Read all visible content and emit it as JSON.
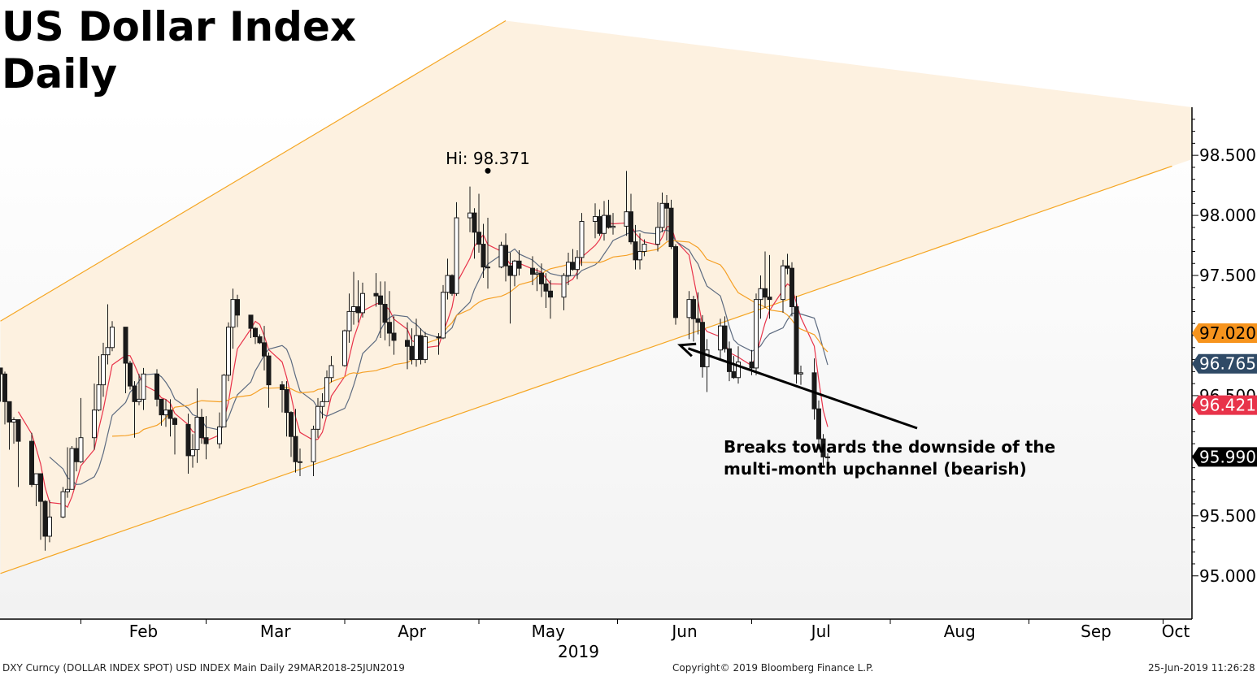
{
  "header": {
    "title_line1": "US Dollar Index",
    "title_line2": "Daily"
  },
  "footer": {
    "left": "DXY Curncy (DOLLAR INDEX SPOT) USD INDEX Main  Daily 29MAR2018-25JUN2019",
    "center": "Copyright© 2019 Bloomberg Finance L.P.",
    "right": "25-Jun-2019 11:26:28"
  },
  "colors": {
    "candle": "#1a1a1a",
    "ma_short": "#e8334a",
    "ma_mid": "#5d6b80",
    "ma_long": "#f5a026",
    "channel_fill": "#fdf1e0",
    "channel_line": "#f5a623",
    "tag_orange": "#f7941d",
    "tag_blue": "#2f4a66",
    "tag_red": "#e8334a",
    "tag_black": "#000000"
  },
  "chart_data": {
    "type": "candlestick",
    "x_labels": [
      "Feb",
      "Mar",
      "Apr",
      "May",
      "Jun",
      "Jul",
      "Aug",
      "Sep",
      "Oct"
    ],
    "x_year_label": "2019",
    "y_ticks": [
      "98.500",
      "98.000",
      "97.500",
      "96.500",
      "95.500",
      "95.000"
    ],
    "ylim": [
      94.64,
      98.9
    ],
    "grid": false,
    "channel": {
      "upper_start": 97.12,
      "upper_end": 99.62,
      "lower_start": 95.02,
      "lower_end": 98.41,
      "start": "2019-01-14",
      "end_upper": "2019-05-07",
      "end_lower": "2019-10-03"
    },
    "annotations": [
      {
        "text": "Hi: 98.371",
        "value": 98.371,
        "date": "2019-05-03"
      },
      {
        "text_line1": "Breaks towards the downside of the",
        "text_line2": "multi-month upchannel (bearish)",
        "arrow_to_date": "2019-06-15",
        "arrow_to_value": 96.92
      }
    ],
    "price_tags": [
      {
        "label": "97.020",
        "value": 97.02,
        "color": "#f7941d",
        "text_color": "#000000"
      },
      {
        "label": "96.765",
        "value": 96.765,
        "color": "#2f4a66",
        "text_color": "#ffffff"
      },
      {
        "label": "96.421",
        "value": 96.421,
        "color": "#e8334a",
        "text_color": "#ffffff"
      },
      {
        "label": "95.990",
        "value": 95.99,
        "color": "#000000",
        "text_color": "#ffffff"
      }
    ],
    "series": [
      {
        "name": "Close",
        "values": [
          96.68,
          96.45,
          96.28,
          96.3,
          96.12,
          95.76,
          95.85,
          95.62,
          95.33,
          95.49,
          95.7,
          95.72,
          96.06,
          95.95,
          96.15,
          96.38,
          96.59,
          96.84,
          96.9,
          97.07,
          96.77,
          96.58,
          96.45,
          96.47,
          96.68,
          96.47,
          96.34,
          96.38,
          96.31,
          96.26,
          96.0,
          96.05,
          96.32,
          96.15,
          96.1,
          96.24,
          96.67,
          97.07,
          97.3,
          97.17,
          97.06,
          96.99,
          96.94,
          96.83,
          96.59,
          96.55,
          96.36,
          96.16,
          95.95,
          95.95,
          96.22,
          96.41,
          96.45,
          96.65,
          96.75,
          97.04,
          97.2,
          97.24,
          97.19,
          97.35,
          97.33,
          97.26,
          97.11,
          97.02,
          96.96,
          96.91,
          96.8,
          97.0,
          96.8,
          96.99,
          96.98,
          97.36,
          97.5,
          97.35,
          97.98,
          98.02,
          97.86,
          97.76,
          97.57,
          97.57,
          97.75,
          97.58,
          97.5,
          97.62,
          97.56,
          97.51,
          97.52,
          97.43,
          97.37,
          97.32,
          97.5,
          97.61,
          97.55,
          97.65,
          97.95,
          97.99,
          97.85,
          98.0,
          97.9,
          97.91,
          98.03,
          97.78,
          97.63,
          97.7,
          97.76,
          97.9,
          98.1,
          98.06,
          97.74,
          97.15,
          97.3,
          97.14,
          97.11,
          96.74,
          96.88,
          97.08,
          96.89,
          96.7,
          96.65,
          96.78,
          96.73,
          97.3,
          97.39,
          97.32,
          97.3,
          97.58,
          97.56,
          97.24,
          96.68,
          96.69,
          96.39,
          96.14,
          95.99,
          95.99
        ]
      },
      {
        "name": "High",
        "values": [
          96.73,
          96.7,
          96.37,
          96.32,
          96.17,
          96.19,
          95.85,
          95.66,
          95.63,
          95.63,
          95.74,
          96.07,
          96.08,
          96.15,
          96.48,
          96.6,
          96.83,
          96.94,
          97.26,
          97.12,
          97.05,
          96.79,
          96.62,
          96.68,
          96.73,
          96.72,
          96.47,
          96.47,
          96.47,
          96.32,
          96.35,
          96.18,
          96.56,
          96.39,
          96.33,
          96.36,
          96.68,
          97.11,
          97.39,
          97.34,
          97.17,
          97.07,
          97.01,
          97.08,
          96.86,
          96.62,
          96.62,
          96.37,
          96.39,
          96.06,
          96.25,
          96.48,
          96.52,
          96.71,
          96.83,
          97.05,
          97.35,
          97.53,
          97.46,
          97.44,
          97.52,
          97.45,
          97.45,
          97.37,
          97.16,
          97.11,
          97.06,
          97.14,
          97.06,
          97.03,
          97.02,
          97.42,
          97.64,
          97.51,
          98.11,
          98.24,
          98.06,
          98.18,
          97.93,
          97.98,
          97.78,
          97.85,
          97.69,
          97.63,
          97.71,
          97.66,
          97.56,
          97.6,
          97.52,
          97.46,
          97.52,
          97.69,
          97.72,
          97.71,
          98.02,
          98.1,
          98.05,
          98.12,
          98.13,
          98.02,
          98.37,
          98.18,
          97.92,
          97.85,
          97.8,
          98.11,
          98.19,
          98.17,
          98.13,
          97.76,
          97.37,
          97.33,
          97.36,
          97.17,
          96.97,
          97.14,
          97.16,
          96.95,
          96.83,
          96.91,
          96.88,
          97.35,
          97.5,
          97.7,
          97.67,
          97.63,
          97.68,
          97.61,
          97.33,
          96.75,
          96.81,
          96.46,
          96.18,
          96.02
        ]
      },
      {
        "name": "Low",
        "values": [
          96.45,
          96.26,
          96.05,
          96.1,
          95.74,
          95.74,
          95.58,
          95.3,
          95.21,
          95.28,
          95.48,
          95.65,
          95.93,
          95.87,
          95.94,
          96.05,
          96.37,
          96.49,
          96.76,
          96.87,
          96.52,
          96.55,
          96.15,
          96.42,
          96.38,
          96.41,
          96.25,
          96.24,
          96.16,
          96.01,
          95.85,
          95.9,
          95.94,
          96.1,
          95.97,
          96.06,
          96.24,
          96.62,
          96.89,
          97.07,
          96.98,
          96.93,
          96.93,
          96.71,
          96.4,
          96.36,
          96.16,
          95.99,
          95.86,
          95.83,
          95.83,
          96.15,
          96.31,
          96.45,
          96.61,
          96.74,
          96.94,
          97.09,
          97.11,
          97.15,
          97.24,
          96.98,
          96.96,
          96.91,
          96.84,
          96.72,
          96.76,
          96.74,
          96.76,
          96.77,
          96.84,
          96.97,
          97.3,
          97.33,
          97.33,
          97.86,
          97.64,
          97.69,
          97.48,
          97.39,
          97.56,
          97.45,
          97.1,
          97.41,
          97.5,
          97.42,
          97.37,
          97.32,
          97.23,
          97.14,
          97.21,
          97.42,
          97.54,
          97.47,
          97.58,
          97.81,
          97.83,
          97.79,
          97.89,
          97.84,
          97.83,
          97.76,
          97.55,
          97.55,
          97.66,
          97.7,
          97.86,
          97.79,
          97.72,
          97.09,
          96.97,
          96.95,
          97.01,
          96.65,
          96.53,
          96.8,
          96.86,
          96.62,
          96.64,
          96.6,
          96.67,
          96.67,
          97.14,
          97.23,
          97.14,
          97.19,
          97.51,
          97.16,
          96.6,
          96.59,
          96.3,
          96.05,
          95.92,
          95.85
        ]
      }
    ]
  }
}
